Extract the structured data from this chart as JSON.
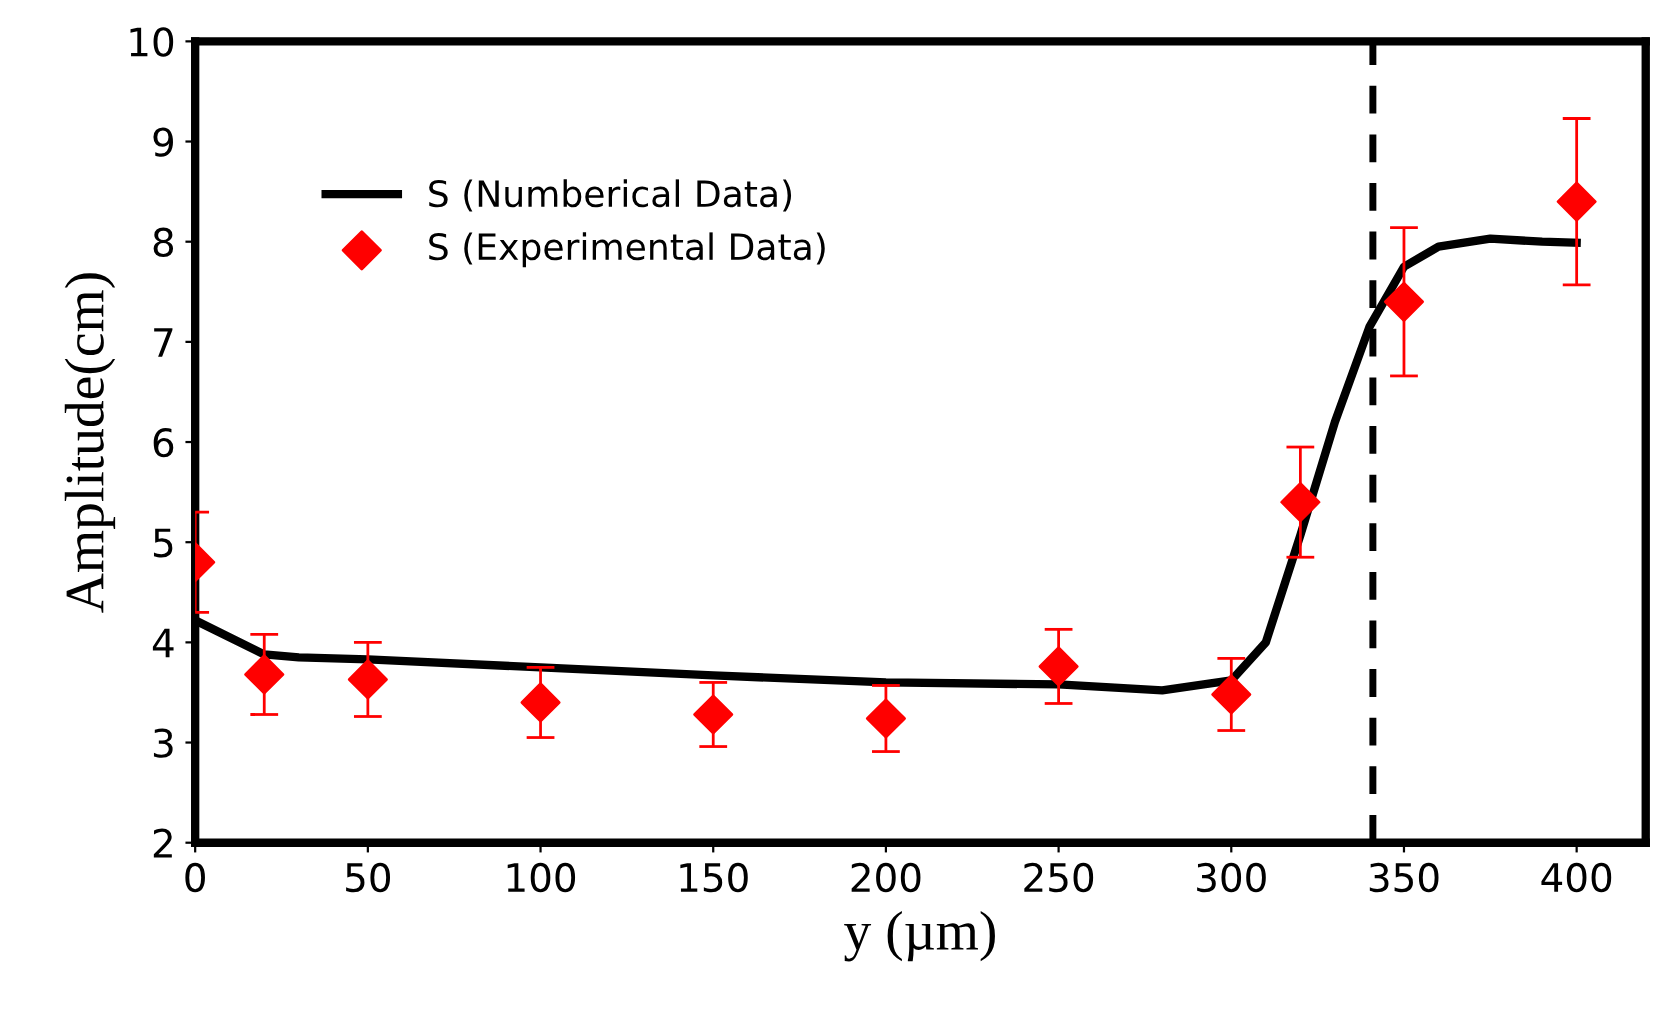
{
  "chart_data": {
    "type": "line",
    "xlabel": "y (µm)",
    "ylabel": "Amplitude(cm)",
    "xlim": [
      0,
      420
    ],
    "xticks": [
      0,
      50,
      100,
      150,
      200,
      250,
      300,
      350,
      400
    ],
    "ylim": [
      2,
      10
    ],
    "yticks": [
      2,
      3,
      4,
      5,
      6,
      7,
      8,
      9,
      10
    ],
    "grid": false,
    "legend": "top left",
    "series": [
      {
        "name": "S (Numberical Data)",
        "color": "#000000",
        "marker": "none",
        "line_style": "solid",
        "x": [
          0,
          20,
          30,
          50,
          100,
          150,
          200,
          250,
          280,
          300,
          310,
          320,
          330,
          340,
          350,
          360,
          375,
          390,
          400
        ],
        "values": [
          4.22,
          3.88,
          3.85,
          3.83,
          3.75,
          3.67,
          3.6,
          3.58,
          3.52,
          3.62,
          4.0,
          5.07,
          6.2,
          7.15,
          7.75,
          7.95,
          8.03,
          8.0,
          7.99
        ]
      },
      {
        "name": "S (Experimental Data)",
        "type": "scatter",
        "color": "#ff0000",
        "marker": "diamond",
        "x": [
          0,
          20,
          50,
          100,
          150,
          200,
          250,
          300,
          320,
          350,
          400
        ],
        "values": [
          4.8,
          3.68,
          3.63,
          3.4,
          3.28,
          3.24,
          3.76,
          3.48,
          5.4,
          7.4,
          8.4
        ],
        "errors": [
          0.5,
          0.4,
          0.37,
          0.35,
          0.32,
          0.33,
          0.37,
          0.36,
          0.55,
          0.74,
          0.83
        ]
      }
    ],
    "ref_lines": [
      {
        "axis": "x",
        "value": 341,
        "color": "#000000",
        "line_style": "dashed"
      }
    ]
  }
}
